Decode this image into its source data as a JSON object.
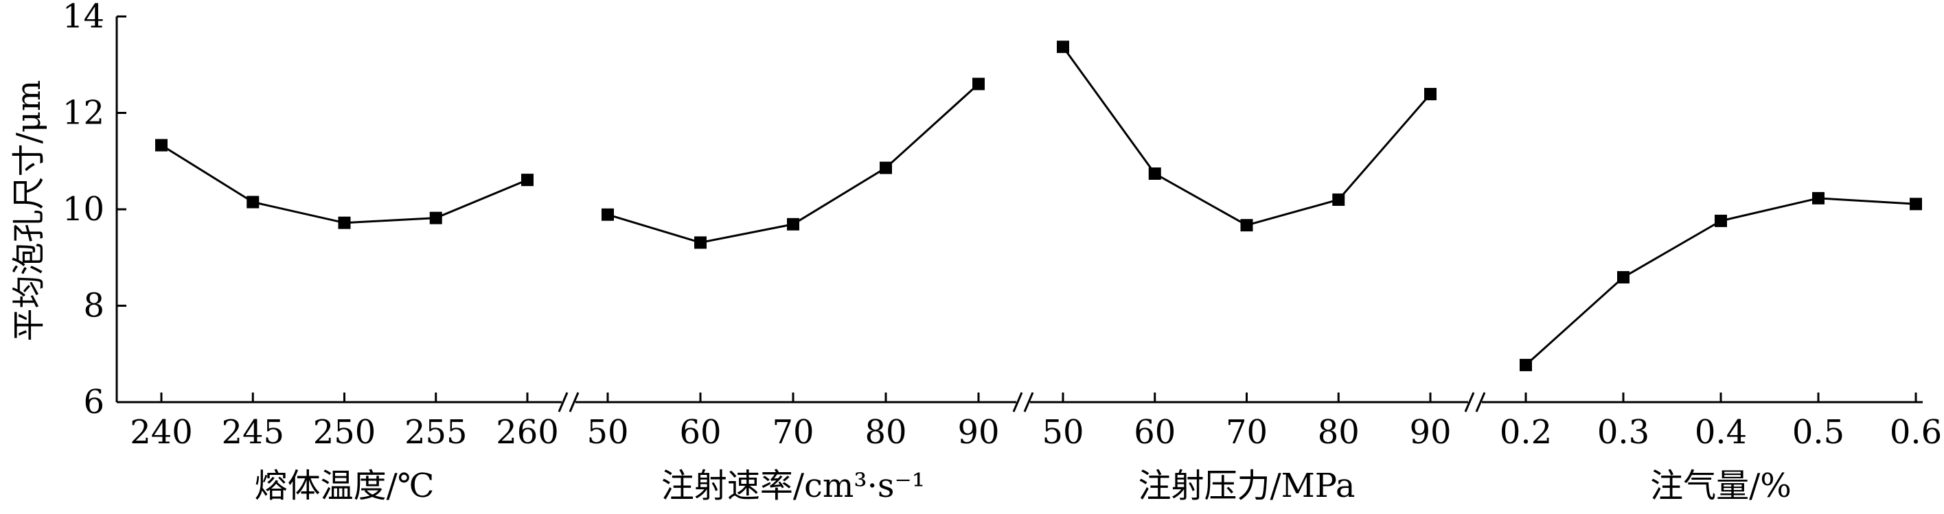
{
  "chart_data": {
    "type": "line",
    "ylabel": "平均泡孔尺寸/μm",
    "ylim": [
      6,
      14
    ],
    "yticks": [
      "6",
      "8",
      "10",
      "12",
      "14"
    ],
    "grid": false,
    "legend": "none",
    "axis_break_marker": "//",
    "colors": {
      "line": "#000000",
      "marker": "#000000"
    },
    "panels": [
      {
        "xlabel": "熔体温度/℃",
        "x": [
          "240",
          "245",
          "250",
          "255",
          "260"
        ],
        "values": [
          11.33,
          10.15,
          9.72,
          9.82,
          10.61
        ]
      },
      {
        "xlabel": "注射速率/cm³·s⁻¹",
        "x": [
          "50",
          "60",
          "70",
          "80",
          "90"
        ],
        "values": [
          9.89,
          9.31,
          9.69,
          10.86,
          12.6
        ]
      },
      {
        "xlabel": "注射压力/MPa",
        "x": [
          "50",
          "60",
          "70",
          "80",
          "90"
        ],
        "values": [
          13.37,
          10.74,
          9.67,
          10.2,
          12.39
        ]
      },
      {
        "xlabel": "注气量/%",
        "x": [
          "0.2",
          "0.3",
          "0.4",
          "0.5",
          "0.6"
        ],
        "values": [
          6.77,
          8.59,
          9.76,
          10.23,
          10.11
        ]
      }
    ]
  }
}
